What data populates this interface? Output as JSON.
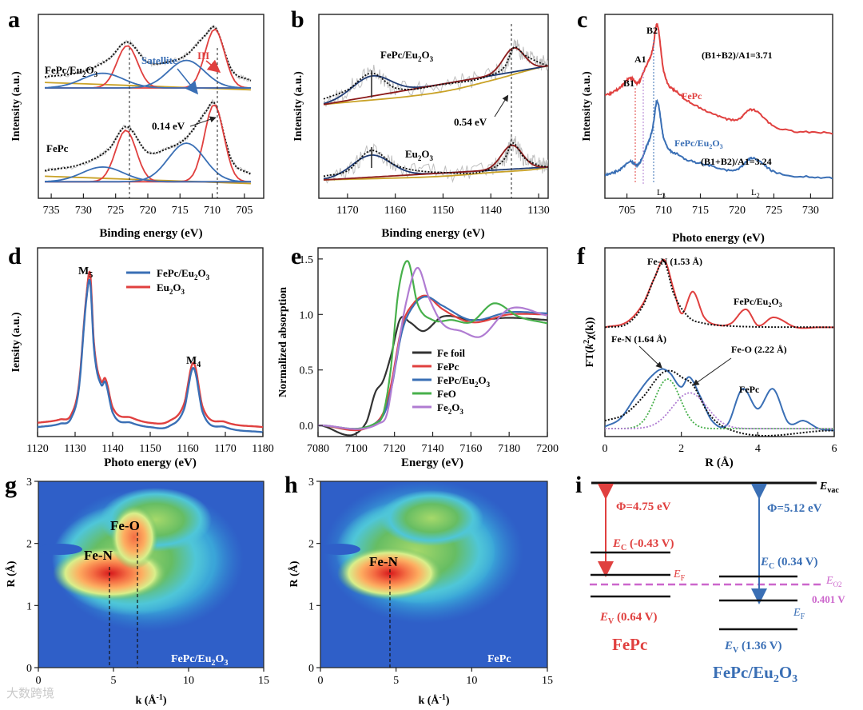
{
  "watermark": "大数跨境",
  "chart_data": [
    {
      "panel": "a",
      "type": "line",
      "xlabel": "Binding energy (eV)",
      "ylabel": "Intensity (a.u.)",
      "xlim": [
        737,
        702
      ],
      "xticks": [
        735,
        730,
        725,
        720,
        715,
        710,
        705
      ],
      "ylim": [
        0,
        10
      ],
      "annotations": [
        "Satellite",
        "III",
        "0.14 eV"
      ],
      "series": [
        {
          "name": "FePc/Eu2O3",
          "role": "data",
          "x": [
            736,
            730,
            726,
            723.2,
            720,
            717,
            714,
            711,
            709.6,
            707,
            704
          ],
          "y": [
            6.6,
            6.9,
            7.6,
            8.5,
            7.4,
            7.4,
            7.8,
            8.9,
            9.3,
            7.0,
            6.4
          ]
        },
        {
          "name": "FePc",
          "role": "data",
          "x": [
            736,
            730,
            726,
            723.4,
            720,
            717,
            714,
            711,
            709.7,
            707,
            704
          ],
          "y": [
            1.5,
            1.9,
            2.7,
            3.9,
            2.5,
            2.7,
            3.3,
            4.7,
            5.2,
            2.1,
            1.3
          ]
        }
      ]
    },
    {
      "panel": "b",
      "type": "line",
      "xlabel": "Binding energy (eV)",
      "ylabel": "Intensity (a.u.)",
      "xlim": [
        1176,
        1128
      ],
      "xticks": [
        1170,
        1160,
        1150,
        1140,
        1130
      ],
      "annotations": [
        "0.54 eV"
      ],
      "series": [
        {
          "name": "FePc/Eu2O3",
          "role": "data",
          "x": [
            1175,
            1170,
            1165,
            1160,
            1150,
            1140,
            1137,
            1135.2,
            1133,
            1130,
            1128
          ],
          "y": [
            5.4,
            5.9,
            6.8,
            6.0,
            6.2,
            6.7,
            7.2,
            8.2,
            7.8,
            7.4,
            7.2
          ]
        },
        {
          "name": "Eu2O3",
          "role": "data",
          "x": [
            1175,
            1170,
            1165,
            1160,
            1150,
            1140,
            1137,
            1135.6,
            1133,
            1130,
            1128
          ],
          "y": [
            1.2,
            1.5,
            2.6,
            1.8,
            1.4,
            1.6,
            2.2,
            3.0,
            2.2,
            1.8,
            1.7
          ]
        }
      ]
    },
    {
      "panel": "c",
      "type": "line",
      "xlabel": "Photo energy (eV)",
      "ylabel": "Intensity (a.u.)",
      "xlim": [
        702,
        733
      ],
      "xticks": [
        705,
        710,
        715,
        720,
        725,
        730
      ],
      "annotations": [
        "B2",
        "A1",
        "B1",
        "(B1+B2)/A1=3.71",
        "(B1+B2)/A1=3.24",
        "L3",
        "L2"
      ],
      "series": [
        {
          "name": "FePc",
          "x": [
            702,
            704,
            705.5,
            706.5,
            707.5,
            708.5,
            709.1,
            710,
            712,
            716,
            720,
            722,
            725,
            733
          ],
          "y": [
            6.1,
            6.6,
            7.2,
            6.9,
            7.8,
            8.9,
            10.4,
            7.6,
            6.3,
            5.2,
            4.7,
            5.3,
            4.3,
            3.9
          ]
        },
        {
          "name": "FePc/Eu2O3",
          "x": [
            702,
            704,
            705.5,
            706.5,
            707.5,
            708.5,
            709.1,
            710,
            712,
            716,
            720,
            722,
            725,
            733
          ],
          "y": [
            1.4,
            1.7,
            2.2,
            2.0,
            2.9,
            4.2,
            5.8,
            3.6,
            2.6,
            2.0,
            1.7,
            2.4,
            1.6,
            1.2
          ]
        }
      ]
    },
    {
      "panel": "d",
      "type": "line",
      "xlabel": "Photo energy (eV)",
      "ylabel": "Iensity (a.u.)",
      "xlim": [
        1120,
        1180
      ],
      "xticks": [
        1120,
        1130,
        1140,
        1150,
        1160,
        1170,
        1180
      ],
      "annotations": [
        "M5",
        "M4"
      ],
      "legend": "top-left",
      "series": [
        {
          "name": "FePc/Eu2O3",
          "x": [
            1120,
            1126,
            1129,
            1131,
            1133,
            1134,
            1135,
            1137,
            1138,
            1140,
            1145,
            1150,
            1155,
            1159,
            1161.5,
            1164,
            1170,
            1180
          ],
          "y": [
            0.55,
            0.75,
            1.1,
            2.8,
            8.0,
            9.0,
            5.2,
            3.0,
            3.2,
            1.4,
            0.8,
            0.55,
            0.6,
            1.6,
            4.0,
            1.4,
            0.55,
            0.25
          ]
        },
        {
          "name": "Eu2O3",
          "x": [
            1120,
            1126,
            1129,
            1131,
            1133,
            1134,
            1135,
            1137,
            1138,
            1140,
            1145,
            1150,
            1155,
            1159,
            1161.5,
            1164,
            1170,
            1180
          ],
          "y": [
            0.8,
            1.0,
            1.3,
            3.0,
            8.2,
            9.5,
            5.5,
            3.2,
            3.4,
            1.7,
            1.1,
            0.8,
            0.9,
            1.9,
            4.3,
            1.7,
            0.85,
            0.55
          ]
        }
      ]
    },
    {
      "panel": "e",
      "type": "line",
      "xlabel": "Energy (eV)",
      "ylabel": "Normalized absorption",
      "xlim": [
        7080,
        7200
      ],
      "xticks": [
        7080,
        7100,
        7120,
        7140,
        7160,
        7180,
        7200
      ],
      "ylim": [
        -0.1,
        1.6
      ],
      "yticks": [
        0.0,
        0.5,
        1.0,
        1.5
      ],
      "legend": "bottom-right",
      "series": [
        {
          "name": "Fe foil",
          "x": [
            7080,
            7105,
            7110,
            7114,
            7118,
            7123,
            7128,
            7135,
            7145,
            7160,
            7180,
            7200
          ],
          "y": [
            0,
            0.02,
            0.3,
            0.4,
            0.62,
            0.96,
            0.93,
            0.85,
            0.98,
            0.95,
            0.97,
            0.95
          ]
        },
        {
          "name": "FePc",
          "x": [
            7080,
            7110,
            7115,
            7118,
            7124,
            7130,
            7136,
            7145,
            7160,
            7180,
            7200
          ],
          "y": [
            0,
            0.02,
            0.15,
            0.35,
            0.9,
            1.1,
            1.17,
            1.05,
            0.93,
            1.0,
            1.0
          ]
        },
        {
          "name": "FePc/Eu2O3",
          "x": [
            7080,
            7110,
            7115,
            7118,
            7124,
            7130,
            7136,
            7145,
            7160,
            7180,
            7200
          ],
          "y": [
            0,
            0.02,
            0.12,
            0.3,
            0.85,
            1.08,
            1.16,
            1.08,
            0.95,
            1.02,
            1.01
          ]
        },
        {
          "name": "FeO",
          "x": [
            7080,
            7110,
            7114,
            7118,
            7122,
            7127,
            7132,
            7140,
            7150,
            7160,
            7172,
            7185,
            7200
          ],
          "y": [
            0,
            0.02,
            0.1,
            0.5,
            1.2,
            1.48,
            1.1,
            0.95,
            0.95,
            0.93,
            1.1,
            0.98,
            0.92
          ]
        },
        {
          "name": "Fe2O3",
          "x": [
            7080,
            7112,
            7116,
            7120,
            7126,
            7132,
            7138,
            7145,
            7155,
            7165,
            7180,
            7200
          ],
          "y": [
            0,
            0.02,
            0.1,
            0.5,
            1.1,
            1.42,
            1.15,
            0.92,
            0.85,
            0.8,
            1.05,
            0.99
          ]
        }
      ]
    },
    {
      "panel": "f",
      "type": "line",
      "xlabel": "R (Å)",
      "ylabel": "FT(k2χ(k))",
      "xlim": [
        0,
        6
      ],
      "xticks": [
        0,
        2,
        4,
        6
      ],
      "annotations": [
        "Fe-N (1.53 Å)",
        "FePc/Eu2O3",
        "Fe-N (1.64 Å)",
        "Fe-O (2.22 Å)",
        "FePc"
      ],
      "series": [
        {
          "name": "FePc/Eu2O3",
          "x": [
            0,
            0.6,
            1.0,
            1.3,
            1.55,
            1.8,
            2.0,
            2.3,
            2.6,
            3.0,
            3.3,
            3.7,
            4.0,
            4.4,
            5.0,
            5.6,
            6.0
          ],
          "y": [
            5.5,
            5.8,
            6.7,
            8.0,
            8.9,
            7.4,
            6.2,
            7.3,
            6.0,
            5.6,
            5.7,
            6.4,
            5.6,
            6.0,
            5.5,
            5.5,
            5.5
          ]
        },
        {
          "name": "FePc",
          "x": [
            0,
            0.4,
            0.8,
            1.2,
            1.5,
            1.7,
            2.0,
            2.2,
            2.5,
            2.8,
            3.2,
            3.6,
            4.0,
            4.4,
            4.8,
            5.2,
            5.6,
            6.0
          ],
          "y": [
            0.5,
            0.9,
            2.0,
            3.0,
            3.4,
            3.2,
            2.5,
            3.0,
            2.0,
            0.8,
            0.6,
            2.4,
            1.4,
            2.4,
            0.7,
            0.8,
            0.4,
            0.3
          ]
        }
      ]
    },
    {
      "panel": "g",
      "type": "heatmap",
      "xlabel": "k (Å-1)",
      "ylabel": "R (Å)",
      "xlim": [
        0,
        15
      ],
      "xticks": [
        0,
        5,
        10,
        15
      ],
      "ylim": [
        0,
        3
      ],
      "yticks": [
        0,
        1,
        2,
        3
      ],
      "label": "FePc/Eu2O3",
      "peaks": [
        {
          "name": "Fe-N",
          "k": 4.8,
          "R": 1.55
        },
        {
          "name": "Fe-O",
          "k": 6.6,
          "R": 2.15
        }
      ]
    },
    {
      "panel": "h",
      "type": "heatmap",
      "xlabel": "k (Å-1)",
      "ylabel": "R (Å)",
      "xlim": [
        0,
        15
      ],
      "xticks": [
        0,
        5,
        10,
        15
      ],
      "ylim": [
        0,
        3
      ],
      "yticks": [
        0,
        1,
        2,
        3
      ],
      "label": "FePc",
      "peaks": [
        {
          "name": "Fe-N",
          "k": 4.5,
          "R": 1.5
        }
      ]
    },
    {
      "panel": "i",
      "type": "diagram",
      "levels": [
        "Evac",
        "EO2"
      ],
      "annotations": [
        "Φ=4.75 eV",
        "EC (-0.43 V)",
        "EF",
        "EV (0.64 V)",
        "FePc",
        "Φ=5.12 eV",
        "EC (0.34 V)",
        "EO2",
        "0.401 V",
        "EF",
        "EV (1.36 V)",
        "FePc/Eu2O3"
      ]
    }
  ],
  "text": {
    "a": {
      "letter": "a",
      "s1": "FePc/Eu",
      "s1b": "2",
      "s1c": "O",
      "s1d": "3",
      "s2": "FePc",
      "sat": "Satellite",
      "iii": "III",
      "shift": "0.14 eV"
    },
    "b": {
      "letter": "b",
      "s1": "FePc/Eu",
      "s1b": "2",
      "s1c": "O",
      "s1d": "3",
      "s2": "Eu",
      "s2b": "2",
      "s2c": "O",
      "s2d": "3",
      "shift": "0.54 eV"
    },
    "c": {
      "letter": "c",
      "b2": "B2",
      "a1": "A1",
      "b1": "B1",
      "r1": "(B1+B2)/A1=3.71",
      "r2": "(B1+B2)/A1=3.24",
      "s1": "FePc",
      "s2": "FePc/Eu",
      "s2b": "2",
      "s2c": "O",
      "s2d": "3",
      "l3": "L",
      "l3b": "3",
      "l2": "L",
      "l2b": "2"
    },
    "d": {
      "letter": "d",
      "m5": "M",
      "m5b": "5",
      "m4": "M",
      "m4b": "4"
    },
    "e": {
      "letter": "e"
    },
    "f": {
      "letter": "f",
      "feN1": "Fe-N (1.53 Å)",
      "s1": "FePc/Eu",
      "s1b": "2",
      "s1c": "O",
      "s1d": "3",
      "feN2": "Fe-N (1.64 Å)",
      "feO": "Fe-O (2.22 Å)",
      "s2": "FePc",
      "ylab_a": "FT(",
      "ylab_b": "k",
      "ylab_c": "2",
      "ylab_d": "χ(k))"
    },
    "g": {
      "letter": "g",
      "feN": "Fe-N",
      "feO": "Fe-O",
      "lab": "FePc/Eu",
      "labb": "2",
      "labc": "O",
      "labd": "3",
      "xl": "k (Å",
      "xl2": "-1",
      "xl3": ")"
    },
    "h": {
      "letter": "h",
      "feN": "Fe-N",
      "lab": "FePc",
      "xl": "k (Å",
      "xl2": "-1",
      "xl3": ")"
    },
    "i": {
      "letter": "i",
      "evac": "E",
      "evacb": "vac",
      "phi1": "Φ=4.75 eV",
      "ec1": "E",
      "ec1b": "C",
      "ec1c": " (-0.43 V)",
      "ef1": "E",
      "ef1b": "F",
      "ev1": "E",
      "ev1b": "V",
      "ev1c": " (0.64 V)",
      "name1": "FePc",
      "phi2": "Φ=5.12 eV",
      "ec2": "E",
      "ec2b": "C",
      "ec2c": " (0.34 V)",
      "eo2": "E",
      "eo2b": "O2",
      "eo2v": "0.401 V",
      "ef2": "E",
      "ef2b": "F",
      "ev2": "E",
      "ev2b": "V",
      "ev2c": " (1.36 V)",
      "name2": "FePc/Eu",
      "name2b": "2",
      "name2c": "O",
      "name2d": "3"
    }
  },
  "colors": {
    "red": "#e0403f",
    "blue": "#3a6fb5",
    "gold": "#c9a227",
    "gray": "#bfbfbf",
    "green": "#47b04b",
    "purple": "#b07cd2",
    "black": "#333333",
    "pink": "#cc66cc",
    "maroon": "#8b1a1a",
    "navy": "#1f3b73"
  }
}
